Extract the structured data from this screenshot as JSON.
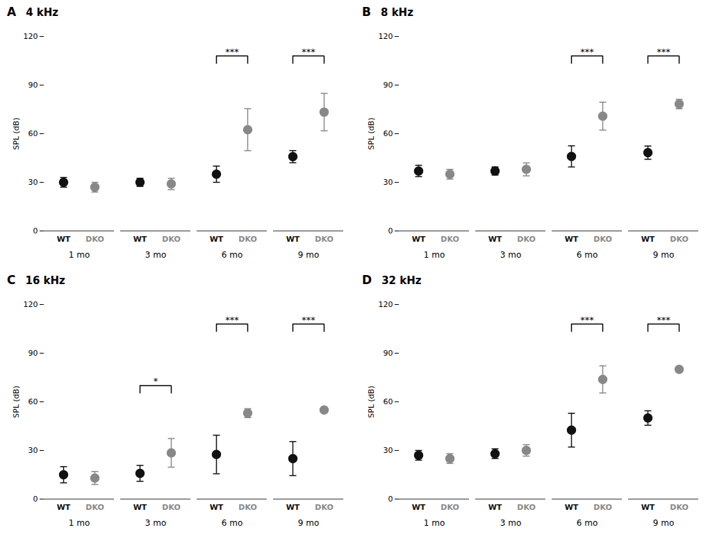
{
  "chart_data": [
    {
      "type": "scatter",
      "panel_label": "A",
      "title": "4 kHz",
      "ylabel": "SPL (dB)",
      "categories": [
        "1 mo",
        "3 mo",
        "6 mo",
        "9 mo"
      ],
      "marker": "circle",
      "series": [
        {
          "name": "WT",
          "color": "#111111",
          "values": [
            30.0,
            30.0,
            35.0,
            45.83
          ],
          "error": [
            3.0,
            2.5,
            5.0,
            3.76
          ]
        },
        {
          "name": "DKO",
          "color": "#888888",
          "values": [
            27.0,
            29.0,
            62.5,
            73.33
          ],
          "error": [
            3.0,
            3.5,
            12.94,
            11.55
          ]
        }
      ],
      "annotations": [
        {
          "category": "6 mo",
          "text": "***",
          "y": 108
        },
        {
          "category": "9 mo",
          "text": "***",
          "y": 108
        }
      ],
      "ylim": [
        0,
        120
      ],
      "yticks": [
        0,
        30,
        60,
        90,
        120
      ]
    },
    {
      "type": "scatter",
      "panel_label": "B",
      "title": "8 kHz",
      "ylabel": "SPL (dB)",
      "categories": [
        "1 mo",
        "3 mo",
        "6 mo",
        "9 mo"
      ],
      "marker": "circle",
      "series": [
        {
          "name": "WT",
          "color": "#111111",
          "values": [
            37.0,
            37.0,
            46.0,
            48.3
          ],
          "error": [
            3.5,
            2.5,
            6.52,
            4.1
          ]
        },
        {
          "name": "DKO",
          "color": "#888888",
          "values": [
            35.0,
            38.0,
            70.83,
            78.3
          ],
          "error": [
            3.0,
            4.0,
            8.6,
            2.89
          ]
        }
      ],
      "annotations": [
        {
          "category": "6 mo",
          "text": "***",
          "y": 108
        },
        {
          "category": "9 mo",
          "text": "***",
          "y": 108
        }
      ],
      "ylim": [
        0,
        120
      ],
      "yticks": [
        0,
        30,
        60,
        90,
        120
      ]
    },
    {
      "type": "scatter",
      "panel_label": "C",
      "title": "16 kHz",
      "ylabel": "SPL (dB)",
      "categories": [
        "1 mo",
        "3 mo",
        "6 mo",
        "9 mo"
      ],
      "marker": "circle",
      "series": [
        {
          "name": "WT",
          "color": "#111111",
          "values": [
            15.0,
            15.83,
            27.5,
            25.0
          ],
          "error": [
            5.0,
            4.91,
            11.9,
            10.49
          ]
        },
        {
          "name": "DKO",
          "color": "#888888",
          "values": [
            13.0,
            28.5,
            53.0,
            55.0
          ],
          "error": [
            4.0,
            8.83,
            2.74,
            0.5
          ]
        }
      ],
      "annotations": [
        {
          "category": "3 mo",
          "text": "*",
          "y": 70
        },
        {
          "category": "6 mo",
          "text": "***",
          "y": 108
        },
        {
          "category": "9 mo",
          "text": "***",
          "y": 108
        }
      ],
      "ylim": [
        0,
        120
      ],
      "yticks": [
        0,
        30,
        60,
        90,
        120
      ]
    },
    {
      "type": "scatter",
      "panel_label": "D",
      "title": "32 kHz",
      "ylabel": "SPL (dB)",
      "categories": [
        "1 mo",
        "3 mo",
        "6 mo",
        "9 mo"
      ],
      "marker": "circle",
      "series": [
        {
          "name": "WT",
          "color": "#111111",
          "values": [
            27.0,
            28.0,
            42.5,
            50.0
          ],
          "error": [
            3.0,
            3.0,
            10.4,
            4.47
          ]
        },
        {
          "name": "DKO",
          "color": "#888888",
          "values": [
            25.0,
            30.0,
            73.84,
            80.0
          ],
          "error": [
            3.0,
            3.5,
            8.37,
            0.5
          ]
        }
      ],
      "annotations": [
        {
          "category": "6 mo",
          "text": "***",
          "y": 108
        },
        {
          "category": "9 mo",
          "text": "***",
          "y": 108
        }
      ],
      "ylim": [
        0,
        120
      ],
      "yticks": [
        0,
        30,
        60,
        90,
        120
      ]
    }
  ]
}
